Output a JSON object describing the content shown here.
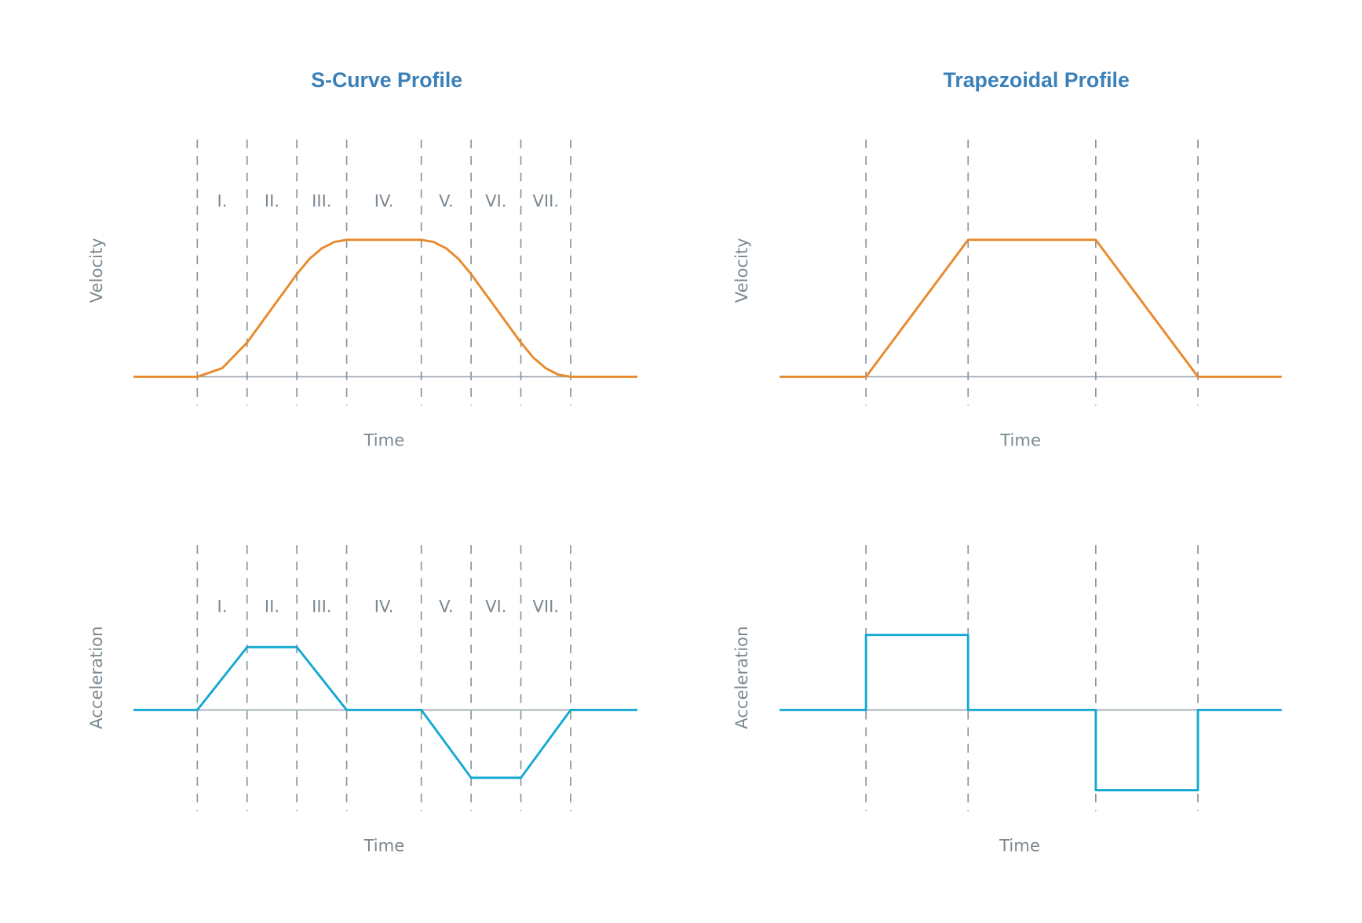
{
  "colors": {
    "velocity": "#E8892B",
    "acceleration": "#12A8D3",
    "title": "#3B80B8",
    "text": "#7C8891",
    "guides": "#8A949C"
  },
  "titles": {
    "s_curve": "S-Curve Profile",
    "trapezoidal": "Trapezoidal Profile"
  },
  "chart_data": [
    {
      "id": "s_velocity",
      "type": "line",
      "title": "S-Curve Profile",
      "xlabel": "Time",
      "ylabel": "Velocity",
      "phase_labels": [
        "I.",
        "II.",
        "III.",
        "IV.",
        "V.",
        "VI.",
        "VII."
      ],
      "phase_boundaries": [
        0,
        1,
        2,
        3,
        4.5,
        5.5,
        6.5,
        7.5
      ],
      "xlim": [
        -1.28,
        8.84
      ],
      "ylim": [
        0,
        1
      ],
      "x": [
        -1.28,
        0,
        0.5,
        1,
        1.5,
        2,
        2.25,
        2.5,
        2.75,
        3,
        4.5,
        4.75,
        5,
        5.25,
        5.5,
        6,
        6.5,
        6.75,
        7,
        7.25,
        7.5,
        8.84
      ],
      "y": [
        0,
        0,
        0.0625,
        0.25,
        0.5,
        0.75,
        0.86,
        0.9375,
        0.984,
        1,
        1,
        0.984,
        0.9375,
        0.86,
        0.75,
        0.5,
        0.25,
        0.14,
        0.0625,
        0.016,
        0,
        0
      ]
    },
    {
      "id": "s_acceleration",
      "type": "line",
      "xlabel": "Time",
      "ylabel": "Acceleration",
      "phase_labels": [
        "I.",
        "II.",
        "III.",
        "IV.",
        "V.",
        "VI.",
        "VII."
      ],
      "phase_boundaries": [
        0,
        1,
        2,
        3,
        4.5,
        5.5,
        6.5,
        7.5
      ],
      "xlim": [
        -1.28,
        8.84
      ],
      "ylim": [
        -1.1,
        1
      ],
      "x": [
        -1.28,
        0,
        1,
        2,
        3,
        4.5,
        5.5,
        6.5,
        7.5,
        8.84
      ],
      "y": [
        0,
        0,
        1,
        1,
        0,
        0,
        -1.08,
        -1.08,
        0,
        0
      ]
    },
    {
      "id": "t_velocity",
      "type": "line",
      "title": "Trapezoidal Profile",
      "xlabel": "Time",
      "ylabel": "Velocity",
      "phase_boundaries": [
        0,
        2,
        4.5,
        6.5
      ],
      "xlim": [
        -1.69,
        8.14
      ],
      "ylim": [
        0,
        1
      ],
      "x": [
        -1.69,
        0,
        2,
        4.5,
        6.5,
        8.14
      ],
      "y": [
        0,
        0,
        1,
        1,
        0,
        0
      ]
    },
    {
      "id": "t_acceleration",
      "type": "line",
      "xlabel": "Time",
      "ylabel": "Acceleration",
      "phase_boundaries": [
        0,
        2,
        4.5,
        6.5
      ],
      "xlim": [
        -1.69,
        8.14
      ],
      "ylim": [
        -1.1,
        1
      ],
      "x": [
        -1.69,
        0,
        0,
        2,
        2,
        4.5,
        4.5,
        6.5,
        6.5,
        8.14
      ],
      "y": [
        0,
        0,
        1,
        1,
        0,
        0,
        -1.07,
        -1.07,
        0,
        0
      ]
    }
  ]
}
